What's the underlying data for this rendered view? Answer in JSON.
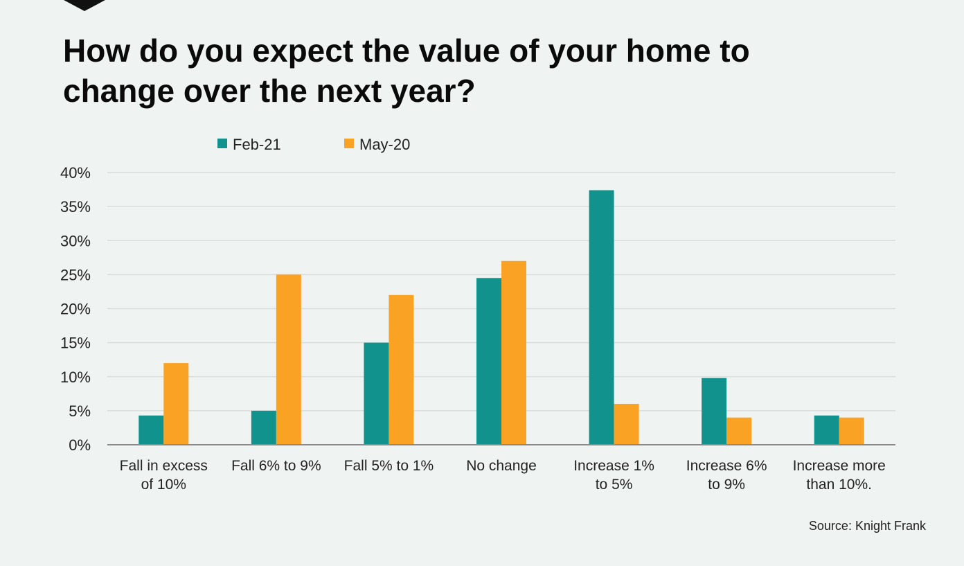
{
  "title_lines": [
    "How do you expect the value of your home to",
    "change over the next year?"
  ],
  "source": "Source: Knight Frank",
  "colors": {
    "feb21": "#11928d",
    "may20": "#f9a223",
    "grid": "#d9dddc",
    "axis": "#8a8a8a",
    "background": "#eff3f2"
  },
  "chart_data": {
    "type": "bar",
    "title": "How do you expect the value of your home to change over the next year?",
    "xlabel": "",
    "ylabel": "",
    "ylim": [
      0,
      40
    ],
    "yticks": [
      "0%",
      "5%",
      "10%",
      "15%",
      "20%",
      "25%",
      "30%",
      "35%",
      "40%"
    ],
    "grid": true,
    "legend": "top-left",
    "categories": [
      [
        "Fall in excess",
        "of 10%"
      ],
      [
        "Fall 6% to 9%"
      ],
      [
        "Fall 5% to 1%"
      ],
      [
        "No change"
      ],
      [
        "Increase 1%",
        "to 5%"
      ],
      [
        "Increase 6%",
        "to 9%"
      ],
      [
        "Increase more",
        "than 10%."
      ]
    ],
    "series": [
      {
        "name": "Feb-21",
        "color": "#11928d",
        "values": [
          4.3,
          5,
          15,
          24.5,
          37.4,
          9.8,
          4.3
        ]
      },
      {
        "name": "May-20",
        "color": "#f9a223",
        "values": [
          12,
          25,
          22,
          27,
          6,
          4,
          4
        ]
      }
    ]
  }
}
